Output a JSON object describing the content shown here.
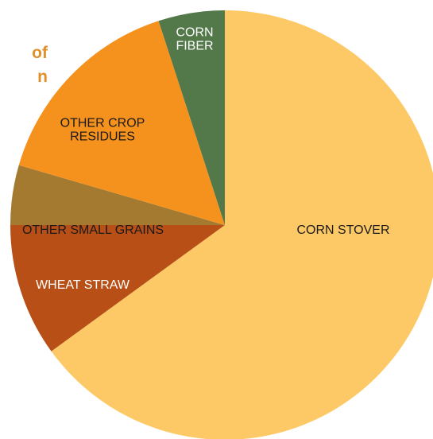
{
  "title_fragment": [
    "of",
    "n"
  ],
  "colors": {
    "title": "#e0902a"
  },
  "chart_data": {
    "type": "pie",
    "start": "12 o'clock",
    "direction": "clockwise",
    "slices": [
      {
        "label": "CORN STOVER",
        "value": 65,
        "color": "#fdc966",
        "text_color": "#1a1a1a",
        "label_lines": [
          "CORN STOVER"
        ]
      },
      {
        "label": "WHEAT STRAW",
        "value": 10,
        "color": "#b74f16",
        "text_color": "#ffffff",
        "label_lines": [
          "WHEAT STRAW"
        ]
      },
      {
        "label": "OTHER SMALL GRAINS",
        "value": 4.5,
        "color": "#a47a30",
        "text_color": "#1a1a1a",
        "label_lines": [
          "OTHER SMALL GRAINS"
        ]
      },
      {
        "label": "OTHER CROP RESIDUES",
        "value": 15.5,
        "color": "#f5921e",
        "text_color": "#1a1a1a",
        "label_lines": [
          "OTHER CROP",
          "RESIDUES"
        ]
      },
      {
        "label": "CORN FIBER",
        "value": 5,
        "color": "#53784a",
        "text_color": "#ffffff",
        "label_lines": [
          "CORN",
          "FIBER"
        ]
      }
    ]
  }
}
